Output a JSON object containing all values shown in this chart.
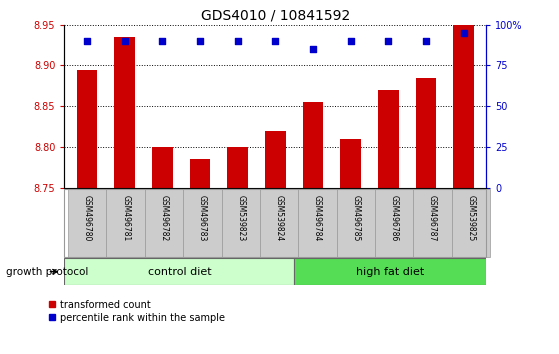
{
  "title": "GDS4010 / 10841592",
  "samples": [
    "GSM496780",
    "GSM496781",
    "GSM496782",
    "GSM496783",
    "GSM539823",
    "GSM539824",
    "GSM496784",
    "GSM496785",
    "GSM496786",
    "GSM496787",
    "GSM539825"
  ],
  "transformed_count": [
    8.895,
    8.935,
    8.8,
    8.785,
    8.8,
    8.82,
    8.855,
    8.81,
    8.87,
    8.885,
    8.95
  ],
  "percentile_rank": [
    90,
    90,
    90,
    90,
    90,
    90,
    85,
    90,
    90,
    90,
    95
  ],
  "ylim_left": [
    8.75,
    8.95
  ],
  "ylim_right": [
    0,
    100
  ],
  "yticks_left": [
    8.75,
    8.8,
    8.85,
    8.9,
    8.95
  ],
  "yticks_right": [
    0,
    25,
    50,
    75,
    100
  ],
  "ytick_labels_right": [
    "0",
    "25",
    "50",
    "75",
    "100%"
  ],
  "bar_color": "#cc0000",
  "dot_color": "#0000cc",
  "n_control": 6,
  "control_diet_label": "control diet",
  "high_fat_diet_label": "high fat diet",
  "growth_protocol_label": "growth protocol",
  "legend_bar_label": "transformed count",
  "legend_dot_label": "percentile rank within the sample",
  "control_diet_color": "#ccffcc",
  "high_fat_diet_color": "#55dd55",
  "tick_label_area_color": "#cccccc",
  "tick_label_area_border": "#999999",
  "group_border_color": "#666666"
}
